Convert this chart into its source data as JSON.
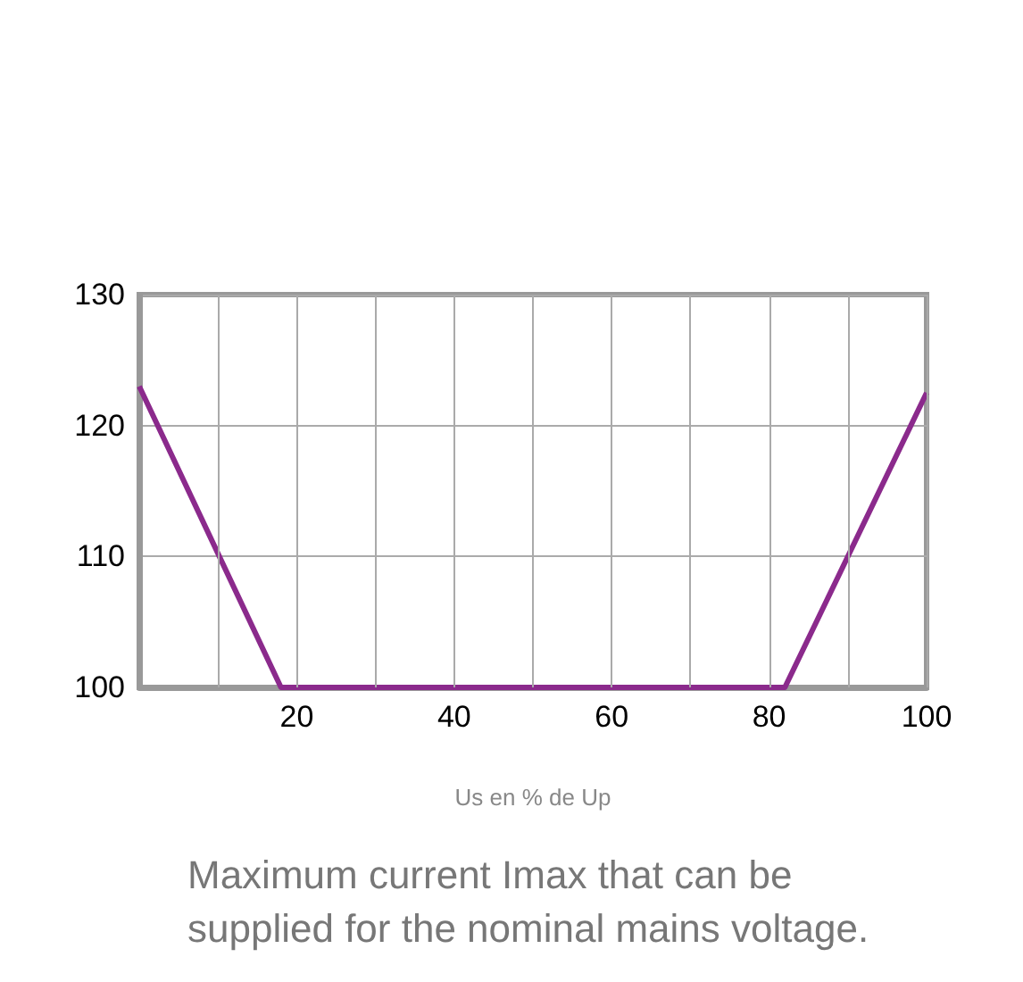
{
  "chart_data": {
    "type": "line",
    "xlabel": "Us en % de Up",
    "annotations": [
      "Maximum current Imax that can be supplied for the nominal mains voltage."
    ],
    "x": [
      0,
      18,
      82,
      100
    ],
    "series": [
      {
        "color": "#8b2a8c",
        "values": [
          123,
          100,
          100,
          122.5
        ]
      }
    ],
    "xlim": [
      0,
      100
    ],
    "xticks": [
      {
        "value": 10,
        "label": null
      },
      20,
      {
        "value": 30,
        "label": null
      },
      40,
      {
        "value": 50,
        "label": null
      },
      60,
      {
        "value": 70,
        "label": null
      },
      80,
      {
        "value": 90,
        "label": null
      },
      100
    ],
    "ylim": [
      100,
      130
    ],
    "yticks": [
      100,
      110,
      120,
      130
    ],
    "grid": true,
    "marker": "none",
    "line_style": "solid"
  }
}
